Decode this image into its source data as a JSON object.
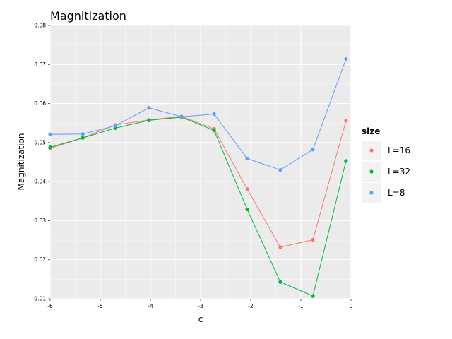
{
  "chart_data": {
    "type": "line",
    "title": "Magnitization",
    "xlabel": "c",
    "ylabel": "Magnitization",
    "xlim": [
      -6,
      0
    ],
    "ylim": [
      0.01,
      0.08
    ],
    "xticks": [
      -6,
      -5,
      -4,
      -3,
      -2,
      -1,
      0
    ],
    "xtick_labels": [
      "-6",
      "-5",
      "-4",
      "-3",
      "-2",
      "-1",
      "0"
    ],
    "yticks": [
      0.01,
      0.02,
      0.03,
      0.04,
      0.05,
      0.06,
      0.07,
      0.08
    ],
    "ytick_labels": [
      "0.01",
      "0.02",
      "0.03",
      "0.04",
      "0.05",
      "0.06",
      "0.07",
      "0.08"
    ],
    "grid": true,
    "background": "#EBEBEB",
    "legend": {
      "title": "size",
      "position": "right"
    },
    "x": [
      -6.0,
      -5.35,
      -4.7,
      -4.03,
      -3.38,
      -2.73,
      -2.07,
      -1.41,
      -0.76,
      -0.1
    ],
    "series": [
      {
        "name": "L=16",
        "color": "#F8766D",
        "values": [
          0.0485,
          0.0512,
          0.0545,
          0.0558,
          0.0567,
          0.0535,
          0.0381,
          0.0232,
          0.0251,
          0.0556
        ]
      },
      {
        "name": "L=32",
        "color": "#00BA38",
        "values": [
          0.0488,
          0.0512,
          0.0537,
          0.0557,
          0.0565,
          0.0531,
          0.0329,
          0.0143,
          0.0107,
          0.0453
        ]
      },
      {
        "name": "L=8",
        "color": "#619CFF",
        "values": [
          0.0521,
          0.0522,
          0.0543,
          0.0589,
          0.0566,
          0.0573,
          0.0459,
          0.043,
          0.0482,
          0.0714
        ]
      }
    ]
  }
}
